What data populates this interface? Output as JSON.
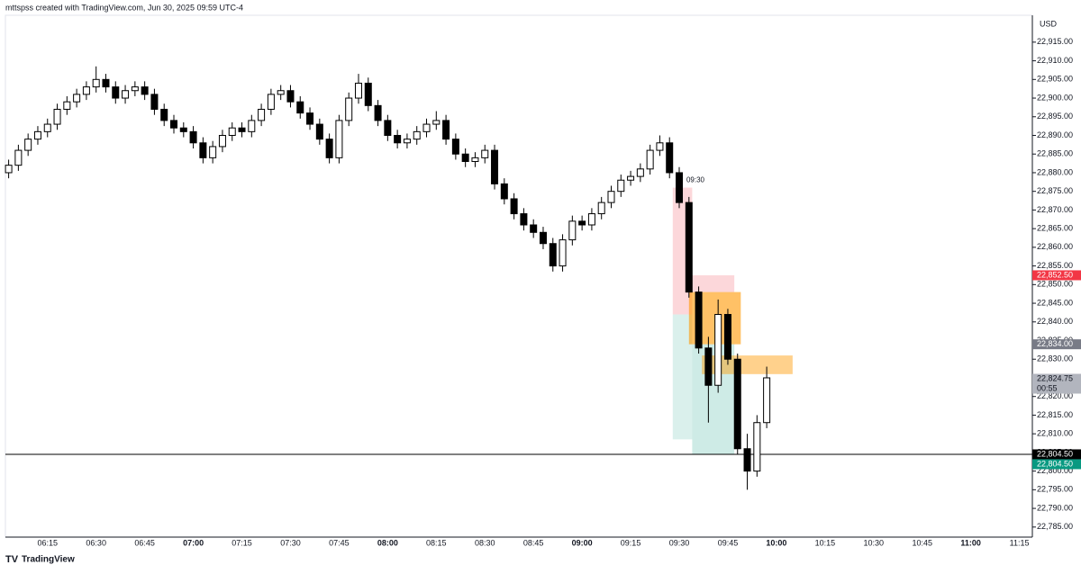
{
  "header": "mttspss created with TradingView.com, Jun 30, 2025 09:59 UTC-4",
  "footer": "TradingView",
  "chart_data": {
    "type": "candlestick",
    "currency": "USD",
    "xlim": [
      "06:02",
      "11:19"
    ],
    "ylim": [
      22782.3,
      22922.2
    ],
    "xticks": [
      "06:15",
      "06:30",
      "06:45",
      "07:00",
      "07:15",
      "07:30",
      "07:45",
      "08:00",
      "08:15",
      "08:30",
      "08:45",
      "09:00",
      "09:15",
      "09:30",
      "09:45",
      "10:00",
      "10:15",
      "10:30",
      "10:45",
      "11:00",
      "11:15"
    ],
    "yticks": [
      {
        "value": 22785,
        "label": "22,785.00"
      },
      {
        "value": 22790,
        "label": "22,790.00"
      },
      {
        "value": 22795,
        "label": "22,795.00"
      },
      {
        "value": 22800,
        "label": "22,800.00"
      },
      {
        "value": 22805,
        "label": "22,805.00"
      },
      {
        "value": 22810,
        "label": "22,810.00"
      },
      {
        "value": 22815,
        "label": "22,815.00"
      },
      {
        "value": 22820,
        "label": "22,820.00"
      },
      {
        "value": 22825,
        "label": "22,825.00"
      },
      {
        "value": 22830,
        "label": "22,830.00"
      },
      {
        "value": 22835,
        "label": "22,835.00"
      },
      {
        "value": 22840,
        "label": "22,840.00"
      },
      {
        "value": 22845,
        "label": "22,845.00"
      },
      {
        "value": 22850,
        "label": "22,850.00"
      },
      {
        "value": 22855,
        "label": "22,855.00"
      },
      {
        "value": 22860,
        "label": "22,860.00"
      },
      {
        "value": 22865,
        "label": "22,865.00"
      },
      {
        "value": 22870,
        "label": "22,870.00"
      },
      {
        "value": 22875,
        "label": "22,875.00"
      },
      {
        "value": 22880,
        "label": "22,880.00"
      },
      {
        "value": 22885,
        "label": "22,885.00"
      },
      {
        "value": 22890,
        "label": "22,890.00"
      },
      {
        "value": 22895,
        "label": "22,895.00"
      },
      {
        "value": 22900,
        "label": "22,900.00"
      },
      {
        "value": 22905,
        "label": "22,905.00"
      },
      {
        "value": 22910,
        "label": "22,910.00"
      },
      {
        "value": 22915,
        "label": "22,915.00"
      }
    ],
    "x": [
      "06:03",
      "06:06",
      "06:09",
      "06:12",
      "06:15",
      "06:18",
      "06:21",
      "06:24",
      "06:27",
      "06:30",
      "06:33",
      "06:36",
      "06:39",
      "06:42",
      "06:45",
      "06:48",
      "06:51",
      "06:54",
      "06:57",
      "07:00",
      "07:03",
      "07:06",
      "07:09",
      "07:12",
      "07:15",
      "07:18",
      "07:21",
      "07:24",
      "07:27",
      "07:30",
      "07:33",
      "07:36",
      "07:39",
      "07:42",
      "07:45",
      "07:48",
      "07:51",
      "07:54",
      "07:57",
      "08:00",
      "08:03",
      "08:06",
      "08:09",
      "08:12",
      "08:15",
      "08:18",
      "08:21",
      "08:24",
      "08:27",
      "08:30",
      "08:33",
      "08:36",
      "08:39",
      "08:42",
      "08:45",
      "08:48",
      "08:51",
      "08:54",
      "08:57",
      "09:00",
      "09:03",
      "09:06",
      "09:09",
      "09:12",
      "09:15",
      "09:18",
      "09:21",
      "09:24",
      "09:27",
      "09:30",
      "09:33",
      "09:36",
      "09:39",
      "09:42",
      "09:45",
      "09:48",
      "09:51",
      "09:54",
      "09:57"
    ],
    "open": [
      22880,
      22882,
      22886,
      22889,
      22891,
      22893,
      22897,
      22899,
      22901,
      22903,
      22905,
      22903,
      22900,
      22902,
      22903,
      22901,
      22897,
      22894,
      22892,
      22891,
      22888,
      22884,
      22887,
      22890,
      22892,
      22891,
      22894,
      22897,
      22901,
      22902,
      22899,
      22896,
      22893,
      22889,
      22884,
      22894,
      22900,
      22904,
      22898,
      22894,
      22890,
      22888,
      22889,
      22891,
      22893,
      22894,
      22889,
      22885,
      22883,
      22884,
      22886,
      22877,
      22873,
      22869,
      22866,
      22864,
      22861,
      22855,
      22862,
      22867,
      22866,
      22869,
      22872,
      22875,
      22878,
      22879,
      22881,
      22886,
      22888,
      22880,
      22872,
      22848,
      22833,
      22823,
      22842,
      22830,
      22806,
      22800,
      22813
    ],
    "high": [
      22883.5,
      22887.5,
      22890.5,
      22892.5,
      22894.5,
      22898.5,
      22900.5,
      22902.5,
      22904.5,
      22908.5,
      22906.5,
      22904.5,
      22903.5,
      22904.5,
      22904.5,
      22902.5,
      22898.5,
      22895.5,
      22893.5,
      22892.5,
      22889.5,
      22888.5,
      22891.5,
      22893.5,
      22893.5,
      22895.5,
      22898.5,
      22902.5,
      22903.5,
      22903.5,
      22900.5,
      22897.5,
      22894.5,
      22890.5,
      22895.5,
      22901.5,
      22906.5,
      22905.5,
      22899.5,
      22895.5,
      22891.5,
      22890.5,
      22892.5,
      22894.5,
      22896.5,
      22895.5,
      22890.5,
      22886.5,
      22885.5,
      22887.5,
      22887.5,
      22878.5,
      22874.5,
      22870.5,
      22867.5,
      22865.5,
      22862.5,
      22863.5,
      22868.5,
      22868.5,
      22870.5,
      22873.5,
      22876.5,
      22879.5,
      22880.5,
      22882.5,
      22887.5,
      22890,
      22889.5,
      22881.5,
      22873.5,
      22849.5,
      22836,
      22846,
      22843.5,
      22831.5,
      22810,
      22815,
      22828
    ],
    "low": [
      22878.5,
      22880.5,
      22884.5,
      22887.5,
      22889.5,
      22891.5,
      22895.5,
      22897.5,
      22899.5,
      22901.5,
      22901.5,
      22898.5,
      22898.5,
      22900.5,
      22899.5,
      22895.5,
      22892.5,
      22890.5,
      22889.5,
      22886.5,
      22882.5,
      22882.5,
      22885.5,
      22888.5,
      22889.5,
      22889.5,
      22892.5,
      22895.5,
      22899.5,
      22897.5,
      22894.5,
      22891.5,
      22887.5,
      22882.5,
      22882.5,
      22892.5,
      22898.5,
      22896.5,
      22892.5,
      22888.5,
      22886.5,
      22886.5,
      22887.5,
      22889.5,
      22891.5,
      22887.5,
      22883.5,
      22881.5,
      22881.5,
      22882.5,
      22875.5,
      22871.5,
      22867.5,
      22864.5,
      22862.5,
      22859.5,
      22853.5,
      22853.5,
      22860.5,
      22864.5,
      22864.5,
      22867.5,
      22870.5,
      22873.5,
      22876.5,
      22877.5,
      22879.5,
      22884.5,
      22878.5,
      22870.5,
      22846.5,
      22831.5,
      22813,
      22821,
      22828.5,
      22804.5,
      22795,
      22798.5,
      22811.5
    ],
    "close": [
      22882,
      22886,
      22889,
      22891,
      22893,
      22897,
      22899,
      22901,
      22903,
      22905,
      22903,
      22900,
      22902,
      22903,
      22901,
      22897,
      22894,
      22892,
      22891,
      22888,
      22884,
      22887,
      22890,
      22892,
      22891,
      22894,
      22897,
      22901,
      22902,
      22899,
      22896,
      22893,
      22889,
      22884,
      22894,
      22900,
      22904,
      22898,
      22894,
      22890,
      22888,
      22889,
      22891,
      22893,
      22894,
      22889,
      22885,
      22883,
      22884,
      22886,
      22877,
      22873,
      22869,
      22866,
      22864,
      22861,
      22855,
      22862,
      22867,
      22866,
      22869,
      22872,
      22875,
      22878,
      22879,
      22881,
      22886,
      22888,
      22880,
      22872,
      22848,
      22833,
      22823,
      22842,
      22830,
      22806,
      22800,
      22813,
      22825
    ],
    "zones": [
      {
        "from": "09:28",
        "to": "09:34",
        "low": 22842,
        "high": 22876,
        "color": "rgba(242,54,69,0.2)"
      },
      {
        "from": "09:28",
        "to": "09:34",
        "low": 22808.5,
        "high": 22842,
        "color": "rgba(8,153,129,0.15)"
      },
      {
        "from": "09:33",
        "to": "09:47",
        "low": 22848,
        "high": 22852.5,
        "color": "rgba(242,54,69,0.2)"
      },
      {
        "from": "09:33",
        "to": "09:49",
        "low": 22834,
        "high": 22848,
        "color": "rgba(255,152,0,0.6)"
      },
      {
        "from": "09:34",
        "to": "09:47",
        "low": 22804.5,
        "high": 22834,
        "color": "rgba(8,153,129,0.2)"
      },
      {
        "from": "09:37",
        "to": "10:05",
        "low": 22826,
        "high": 22831,
        "color": "rgba(255,152,0,0.45)"
      }
    ],
    "annotation": {
      "text": "09:30",
      "x": "09:35",
      "y": 22878
    },
    "hline": {
      "value": 22804.5,
      "color": "#000000"
    },
    "price_tags": [
      {
        "value": 22852.5,
        "label": "22,852.50",
        "color": "#f23645"
      },
      {
        "value": 22834,
        "label": "22,834.00",
        "color": "#787b86"
      },
      {
        "value": 22824.75,
        "label": "22,824.75",
        "sub": "00:55",
        "color": "#b2b5be"
      },
      {
        "value": 22804.5,
        "label": "22,804.50",
        "color": "#000000"
      },
      {
        "value": 22804.5,
        "label": "22,804.50",
        "color": "#089981"
      }
    ]
  }
}
